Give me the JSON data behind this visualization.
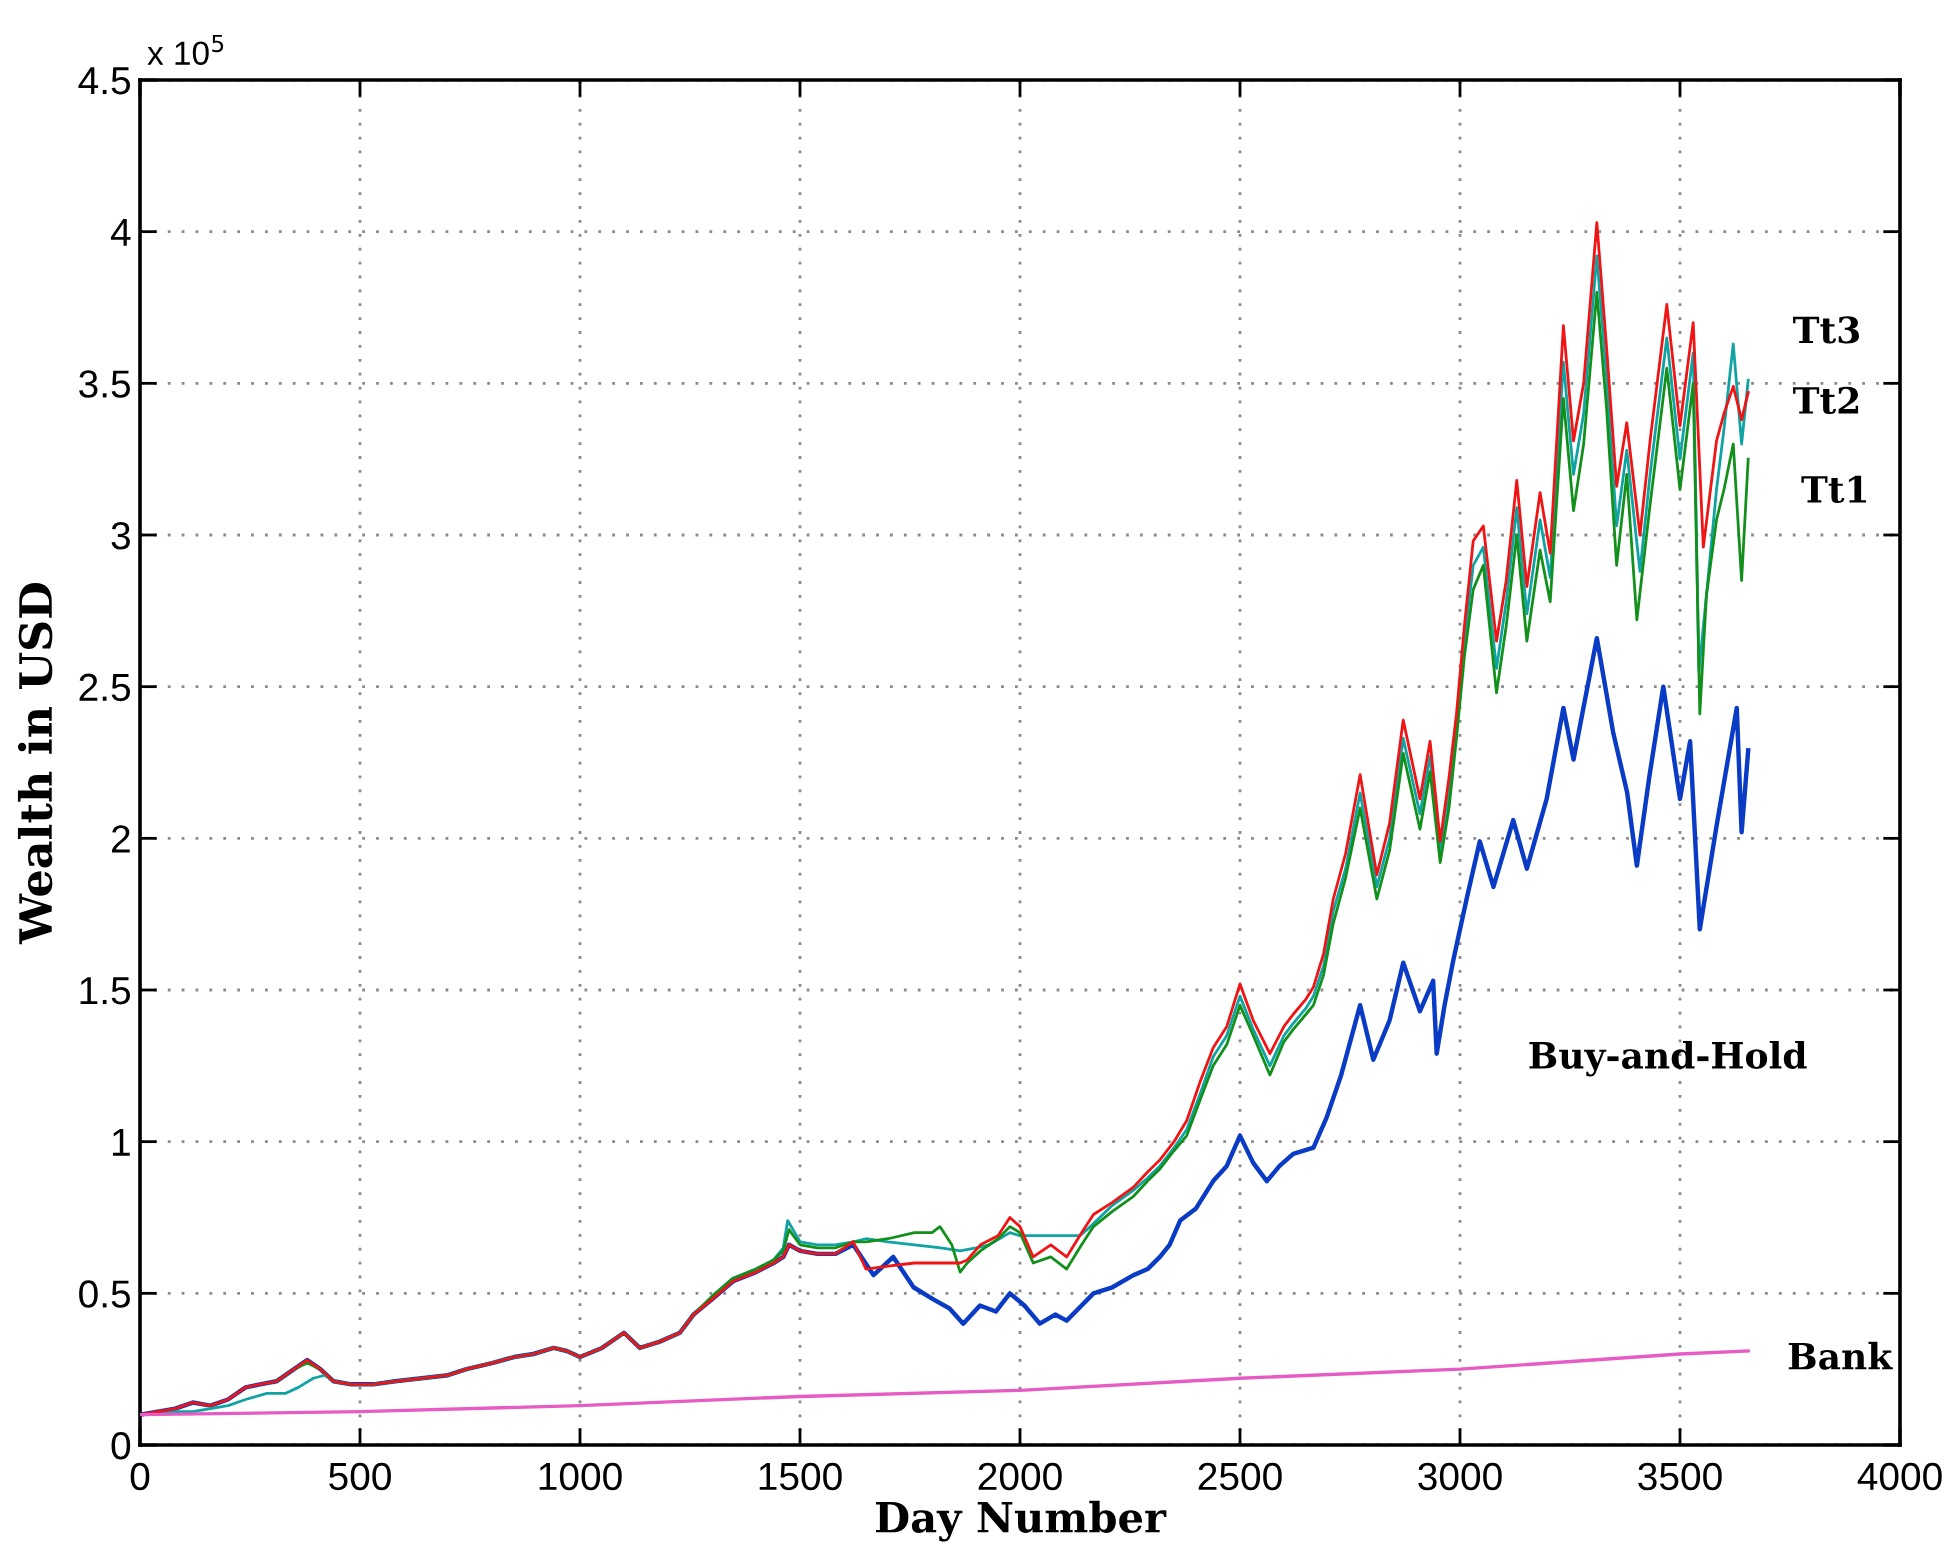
{
  "chart_data": {
    "type": "line",
    "xlabel": "Day Number",
    "ylabel": "Wealth in USD",
    "annotations": [
      "x 10$^{5}$"
    ],
    "xlim": [
      0,
      4000
    ],
    "xticks": [
      0,
      500,
      1000,
      1500,
      2000,
      2500,
      3000,
      3500,
      4000
    ],
    "ylim": [
      0,
      4.5
    ],
    "yticks": [
      0,
      0.5,
      1,
      1.5,
      2,
      2.5,
      3,
      3.5,
      4,
      4.5
    ],
    "grid": true,
    "series": [
      {
        "name": "Buy-and-Hold",
        "color": "#0a3bc4",
        "x": [
          0,
          40,
          80,
          120,
          160,
          200,
          240,
          273,
          310,
          350,
          380,
          410,
          440,
          480,
          530,
          580,
          640,
          700,
          742,
          800,
          850,
          894,
          940,
          970,
          1000,
          1050,
          1100,
          1136,
          1180,
          1227,
          1258,
          1300,
          1348,
          1400,
          1440,
          1462,
          1475,
          1500,
          1540,
          1580,
          1621,
          1667,
          1712,
          1758,
          1803,
          1840,
          1871,
          1909,
          1945,
          1977,
          2010,
          2045,
          2080,
          2106,
          2140,
          2167,
          2210,
          2258,
          2290,
          2318,
          2340,
          2364,
          2400,
          2439,
          2470,
          2500,
          2530,
          2561,
          2590,
          2621,
          2667,
          2697,
          2730,
          2773,
          2803,
          2840,
          2871,
          2909,
          2939,
          2947,
          2965,
          2985,
          3015,
          3045,
          3076,
          3121,
          3152,
          3197,
          3235,
          3258,
          3311,
          3348,
          3380,
          3402,
          3430,
          3462,
          3500,
          3523,
          3545,
          3583,
          3629,
          3640,
          3655
        ],
        "values": [
          0.1,
          0.11,
          0.12,
          0.14,
          0.13,
          0.15,
          0.19,
          0.2,
          0.21,
          0.25,
          0.28,
          0.25,
          0.21,
          0.2,
          0.2,
          0.21,
          0.22,
          0.23,
          0.25,
          0.27,
          0.29,
          0.3,
          0.32,
          0.31,
          0.29,
          0.32,
          0.37,
          0.32,
          0.34,
          0.37,
          0.43,
          0.48,
          0.54,
          0.57,
          0.6,
          0.62,
          0.66,
          0.64,
          0.63,
          0.63,
          0.66,
          0.56,
          0.62,
          0.52,
          0.48,
          0.45,
          0.4,
          0.46,
          0.44,
          0.5,
          0.46,
          0.4,
          0.43,
          0.41,
          0.46,
          0.5,
          0.52,
          0.56,
          0.58,
          0.62,
          0.66,
          0.74,
          0.78,
          0.87,
          0.92,
          1.02,
          0.93,
          0.87,
          0.92,
          0.96,
          0.98,
          1.08,
          1.22,
          1.45,
          1.27,
          1.4,
          1.59,
          1.43,
          1.53,
          1.29,
          1.45,
          1.6,
          1.8,
          1.99,
          1.84,
          2.06,
          1.9,
          2.13,
          2.43,
          2.26,
          2.66,
          2.35,
          2.15,
          1.91,
          2.2,
          2.5,
          2.13,
          2.32,
          1.7,
          2.04,
          2.43,
          2.02,
          2.29
        ]
      },
      {
        "name": "Tt3",
        "color": "#0fa3a3",
        "x": [
          0,
          40,
          80,
          120,
          160,
          200,
          240,
          288,
          330,
          360,
          394,
          420,
          440,
          480,
          530,
          580,
          640,
          700,
          742,
          800,
          850,
          894,
          940,
          970,
          1000,
          1050,
          1100,
          1136,
          1180,
          1227,
          1258,
          1300,
          1348,
          1400,
          1440,
          1462,
          1472,
          1500,
          1540,
          1580,
          1621,
          1650,
          1700,
          1760,
          1820,
          1864,
          1900,
          1930,
          1977,
          2000,
          2050,
          2100,
          2136,
          2160,
          2210,
          2258,
          2290,
          2318,
          2350,
          2379,
          2410,
          2439,
          2470,
          2500,
          2530,
          2568,
          2600,
          2621,
          2650,
          2667,
          2690,
          2712,
          2740,
          2773,
          2811,
          2840,
          2871,
          2909,
          2932,
          2955,
          2975,
          2992,
          3010,
          3030,
          3053,
          3083,
          3105,
          3129,
          3152,
          3182,
          3205,
          3235,
          3258,
          3281,
          3311,
          3333,
          3356,
          3379,
          3409,
          3432,
          3470,
          3500,
          3530,
          3543,
          3560,
          3583,
          3600,
          3621,
          3640,
          3655
        ],
        "values": [
          0.1,
          0.1,
          0.11,
          0.11,
          0.12,
          0.13,
          0.15,
          0.17,
          0.17,
          0.19,
          0.22,
          0.23,
          0.21,
          0.2,
          0.2,
          0.21,
          0.22,
          0.23,
          0.25,
          0.27,
          0.29,
          0.3,
          0.32,
          0.31,
          0.29,
          0.32,
          0.37,
          0.32,
          0.34,
          0.37,
          0.43,
          0.49,
          0.55,
          0.58,
          0.61,
          0.65,
          0.74,
          0.67,
          0.66,
          0.66,
          0.67,
          0.68,
          0.67,
          0.66,
          0.65,
          0.64,
          0.65,
          0.66,
          0.7,
          0.69,
          0.69,
          0.69,
          0.69,
          0.72,
          0.79,
          0.84,
          0.88,
          0.92,
          0.98,
          1.04,
          1.16,
          1.28,
          1.35,
          1.48,
          1.37,
          1.25,
          1.35,
          1.39,
          1.44,
          1.48,
          1.58,
          1.76,
          1.9,
          2.15,
          1.84,
          2.0,
          2.33,
          2.08,
          2.27,
          1.95,
          2.15,
          2.37,
          2.65,
          2.9,
          2.96,
          2.56,
          2.78,
          3.09,
          2.74,
          3.05,
          2.86,
          3.57,
          3.2,
          3.4,
          3.92,
          3.52,
          3.03,
          3.28,
          2.88,
          3.2,
          3.65,
          3.25,
          3.6,
          2.55,
          2.8,
          3.15,
          3.35,
          3.63,
          3.3,
          3.51
        ]
      },
      {
        "name": "Tt1",
        "color": "#13901c",
        "x": [
          310,
          350,
          380,
          410,
          440,
          480,
          530,
          580,
          640,
          700,
          742,
          800,
          850,
          894,
          940,
          970,
          1000,
          1050,
          1100,
          1136,
          1180,
          1227,
          1258,
          1300,
          1348,
          1400,
          1440,
          1462,
          1475,
          1500,
          1540,
          1580,
          1621,
          1650,
          1700,
          1760,
          1800,
          1818,
          1845,
          1864,
          1880,
          1910,
          1950,
          1977,
          2000,
          2030,
          2070,
          2106,
          2140,
          2167,
          2210,
          2258,
          2290,
          2318,
          2350,
          2379,
          2410,
          2439,
          2470,
          2500,
          2530,
          2568,
          2600,
          2621,
          2650,
          2667,
          2690,
          2712,
          2740,
          2773,
          2811,
          2840,
          2871,
          2909,
          2932,
          2955,
          2975,
          2992,
          3010,
          3030,
          3053,
          3083,
          3105,
          3129,
          3152,
          3182,
          3205,
          3235,
          3258,
          3281,
          3311,
          3333,
          3356,
          3379,
          3402,
          3432,
          3470,
          3500,
          3530,
          3545,
          3560,
          3583,
          3600,
          3621,
          3640,
          3655
        ],
        "values": [
          0.21,
          0.25,
          0.27,
          0.25,
          0.21,
          0.2,
          0.2,
          0.21,
          0.22,
          0.23,
          0.25,
          0.27,
          0.29,
          0.3,
          0.32,
          0.31,
          0.29,
          0.32,
          0.37,
          0.32,
          0.34,
          0.37,
          0.43,
          0.49,
          0.55,
          0.58,
          0.61,
          0.64,
          0.71,
          0.66,
          0.65,
          0.65,
          0.67,
          0.67,
          0.68,
          0.7,
          0.7,
          0.72,
          0.66,
          0.57,
          0.6,
          0.64,
          0.68,
          0.72,
          0.7,
          0.6,
          0.62,
          0.58,
          0.66,
          0.72,
          0.77,
          0.82,
          0.87,
          0.91,
          0.97,
          1.02,
          1.14,
          1.25,
          1.32,
          1.45,
          1.35,
          1.22,
          1.33,
          1.37,
          1.42,
          1.45,
          1.55,
          1.72,
          1.87,
          2.1,
          1.8,
          1.96,
          2.28,
          2.03,
          2.22,
          1.92,
          2.1,
          2.33,
          2.6,
          2.82,
          2.9,
          2.48,
          2.7,
          3.0,
          2.65,
          2.95,
          2.78,
          3.45,
          3.08,
          3.3,
          3.8,
          3.42,
          2.9,
          3.2,
          2.72,
          3.1,
          3.55,
          3.15,
          3.5,
          2.41,
          2.8,
          3.05,
          3.15,
          3.3,
          2.85,
          3.25
        ]
      },
      {
        "name": "Tt2",
        "color": "#f01414",
        "x": [
          0,
          40,
          80,
          120,
          160,
          200,
          240,
          273,
          310,
          350,
          380,
          410,
          440,
          480,
          530,
          580,
          640,
          700,
          742,
          800,
          850,
          894,
          940,
          970,
          1000,
          1050,
          1100,
          1136,
          1180,
          1227,
          1258,
          1300,
          1348,
          1400,
          1440,
          1462,
          1475,
          1500,
          1540,
          1580,
          1621,
          1650,
          1700,
          1760,
          1820,
          1864,
          1880,
          1910,
          1950,
          1977,
          2000,
          2030,
          2070,
          2106,
          2140,
          2167,
          2210,
          2258,
          2290,
          2318,
          2350,
          2379,
          2410,
          2439,
          2470,
          2500,
          2530,
          2568,
          2600,
          2621,
          2650,
          2667,
          2690,
          2712,
          2740,
          2773,
          2811,
          2840,
          2871,
          2909,
          2932,
          2955,
          2975,
          2992,
          3010,
          3030,
          3053,
          3083,
          3105,
          3129,
          3152,
          3182,
          3205,
          3235,
          3258,
          3281,
          3311,
          3333,
          3356,
          3379,
          3409,
          3432,
          3470,
          3500,
          3530,
          3553,
          3583,
          3600,
          3621,
          3640,
          3655
        ],
        "values": [
          0.1,
          0.11,
          0.12,
          0.14,
          0.13,
          0.15,
          0.19,
          0.2,
          0.21,
          0.25,
          0.28,
          0.25,
          0.21,
          0.2,
          0.2,
          0.21,
          0.22,
          0.23,
          0.25,
          0.27,
          0.29,
          0.3,
          0.32,
          0.31,
          0.29,
          0.32,
          0.37,
          0.32,
          0.34,
          0.37,
          0.43,
          0.48,
          0.54,
          0.57,
          0.6,
          0.62,
          0.66,
          0.64,
          0.63,
          0.63,
          0.67,
          0.58,
          0.59,
          0.6,
          0.6,
          0.6,
          0.61,
          0.66,
          0.69,
          0.75,
          0.72,
          0.62,
          0.66,
          0.62,
          0.7,
          0.76,
          0.8,
          0.85,
          0.9,
          0.94,
          1.0,
          1.07,
          1.2,
          1.31,
          1.38,
          1.52,
          1.4,
          1.29,
          1.38,
          1.42,
          1.47,
          1.51,
          1.62,
          1.8,
          1.95,
          2.21,
          1.88,
          2.05,
          2.39,
          2.13,
          2.32,
          1.99,
          2.2,
          2.41,
          2.7,
          2.98,
          3.03,
          2.65,
          2.85,
          3.18,
          2.83,
          3.14,
          2.94,
          3.69,
          3.31,
          3.5,
          4.03,
          3.62,
          3.16,
          3.37,
          3.0,
          3.31,
          3.76,
          3.36,
          3.7,
          2.96,
          3.31,
          3.4,
          3.49,
          3.38,
          3.47
        ]
      },
      {
        "name": "Bank",
        "color": "#e65cc4",
        "x": [
          0,
          500,
          1000,
          1500,
          2000,
          2500,
          3000,
          3500,
          3655
        ],
        "values": [
          0.1,
          0.11,
          0.13,
          0.16,
          0.18,
          0.22,
          0.25,
          0.3,
          0.31
        ]
      }
    ]
  }
}
